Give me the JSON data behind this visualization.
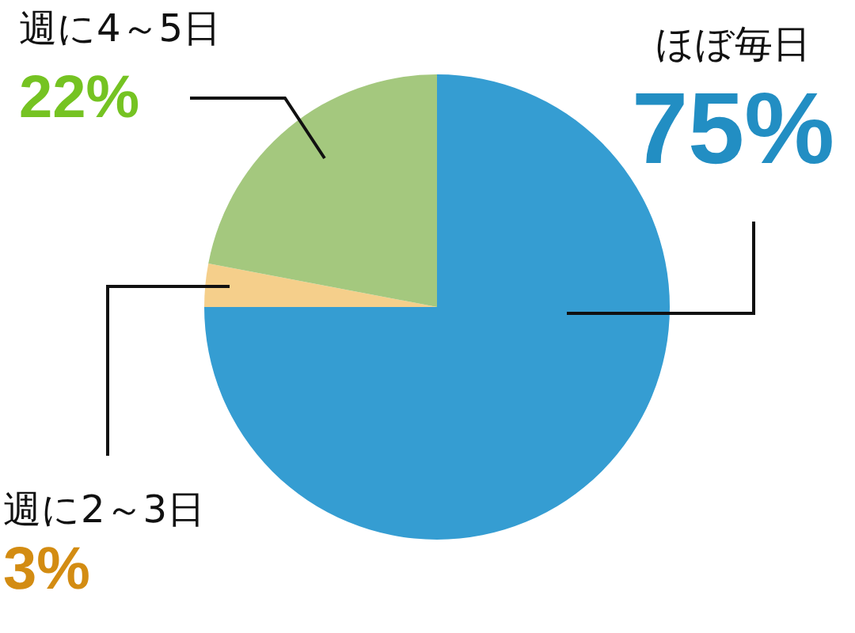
{
  "chart_data": {
    "type": "pie",
    "categories": [
      "ほぼ毎日",
      "週に2～3日",
      "週に4～5日"
    ],
    "values": [
      75,
      3,
      22
    ],
    "colors": [
      "#359dd2",
      "#f5cf8b",
      "#a4c87e"
    ],
    "value_labels": [
      "75%",
      "3%",
      "22%"
    ],
    "legend": false
  }
}
